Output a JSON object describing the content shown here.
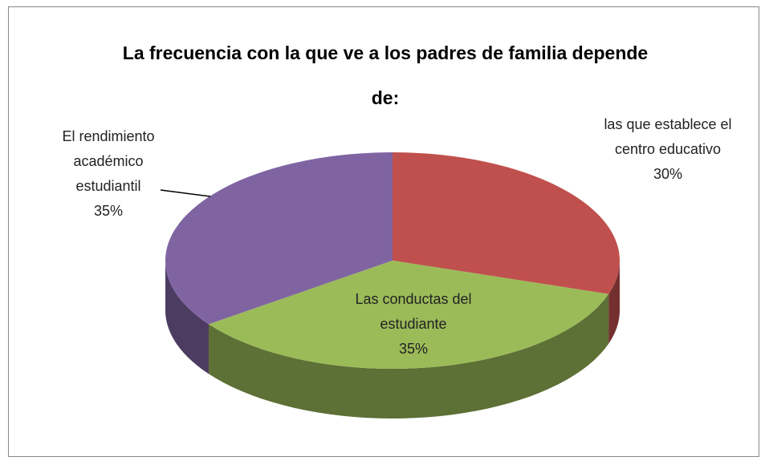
{
  "chart_data": {
    "type": "pie",
    "title": "La frecuencia con la que ve a los padres de familia depende de:",
    "categories": [
      "las que establece el centro educativo",
      "Las conductas del estudiante",
      "El rendimiento académico estudiantil"
    ],
    "values": [
      30,
      35,
      35
    ],
    "value_labels": [
      "30%",
      "35%",
      "35%"
    ],
    "colors": [
      "#c0504d",
      "#9bbb59",
      "#8064a2"
    ]
  }
}
